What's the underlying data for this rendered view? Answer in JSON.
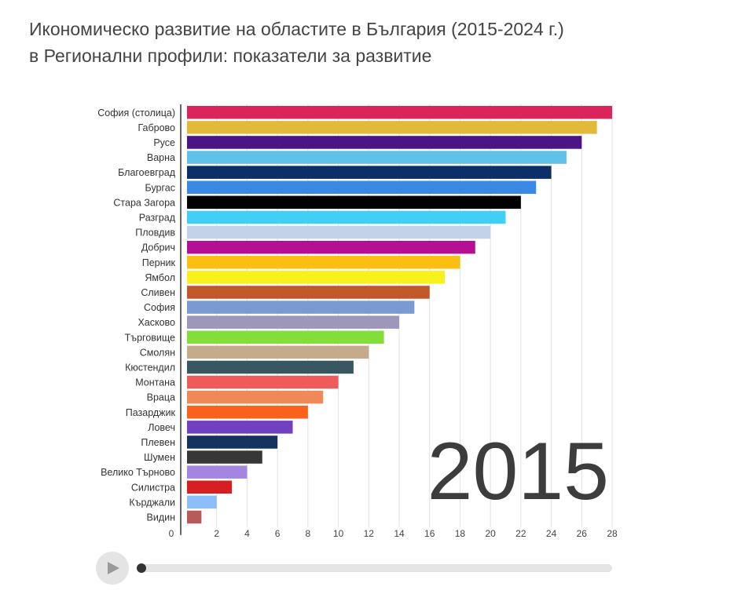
{
  "title": {
    "line1": "Икономическо развитие на областите в България (2015-2024 г.)",
    "line2": "в Регионални профили: показатели за развитие"
  },
  "player": {
    "play_icon": "play-icon",
    "year": "2015"
  },
  "chart_data": {
    "type": "bar",
    "orientation": "horizontal",
    "title": "Икономическо развитие на областите в България (2015-2024 г.) в Регионални профили: показатели за развитие",
    "xlabel": "",
    "ylabel": "",
    "xlim": [
      0,
      28
    ],
    "xticks": [
      0,
      2,
      4,
      6,
      8,
      10,
      12,
      14,
      16,
      18,
      20,
      22,
      24,
      26,
      28
    ],
    "grid": true,
    "year_label": "2015",
    "categories": [
      "София (столица)",
      "Габрово",
      "Русе",
      "Варна",
      "Благоевград",
      "Бургас",
      "Стара Загора",
      "Разград",
      "Пловдив",
      "Добрич",
      "Перник",
      "Ямбол",
      "Сливен",
      "София",
      "Хасково",
      "Търговище",
      "Смолян",
      "Кюстендил",
      "Монтана",
      "Враца",
      "Пазарджик",
      "Ловеч",
      "Плевен",
      "Шумен",
      "Велико Търново",
      "Силистра",
      "Кърджали",
      "Видин"
    ],
    "values": [
      28,
      27,
      26,
      25,
      24,
      23,
      22,
      21,
      20,
      19,
      18,
      17,
      16,
      15,
      14,
      13,
      12,
      11,
      10,
      9,
      8,
      7,
      6,
      5,
      4,
      3,
      2,
      1
    ],
    "colors": [
      "#dc245c",
      "#e3b93a",
      "#4b1586",
      "#5ec3e6",
      "#0d2f69",
      "#3a88e6",
      "#000000",
      "#40d0f5",
      "#c3d2e6",
      "#b50f96",
      "#fbbe12",
      "#f8f21c",
      "#c0582a",
      "#7a9ad2",
      "#9f97b9",
      "#83de3c",
      "#c5ab8c",
      "#38565f",
      "#ee5b58",
      "#ef8a58",
      "#fa621c",
      "#7140bf",
      "#16325e",
      "#373737",
      "#a486e2",
      "#d81e22",
      "#8cbffa",
      "#b85a5a"
    ]
  }
}
